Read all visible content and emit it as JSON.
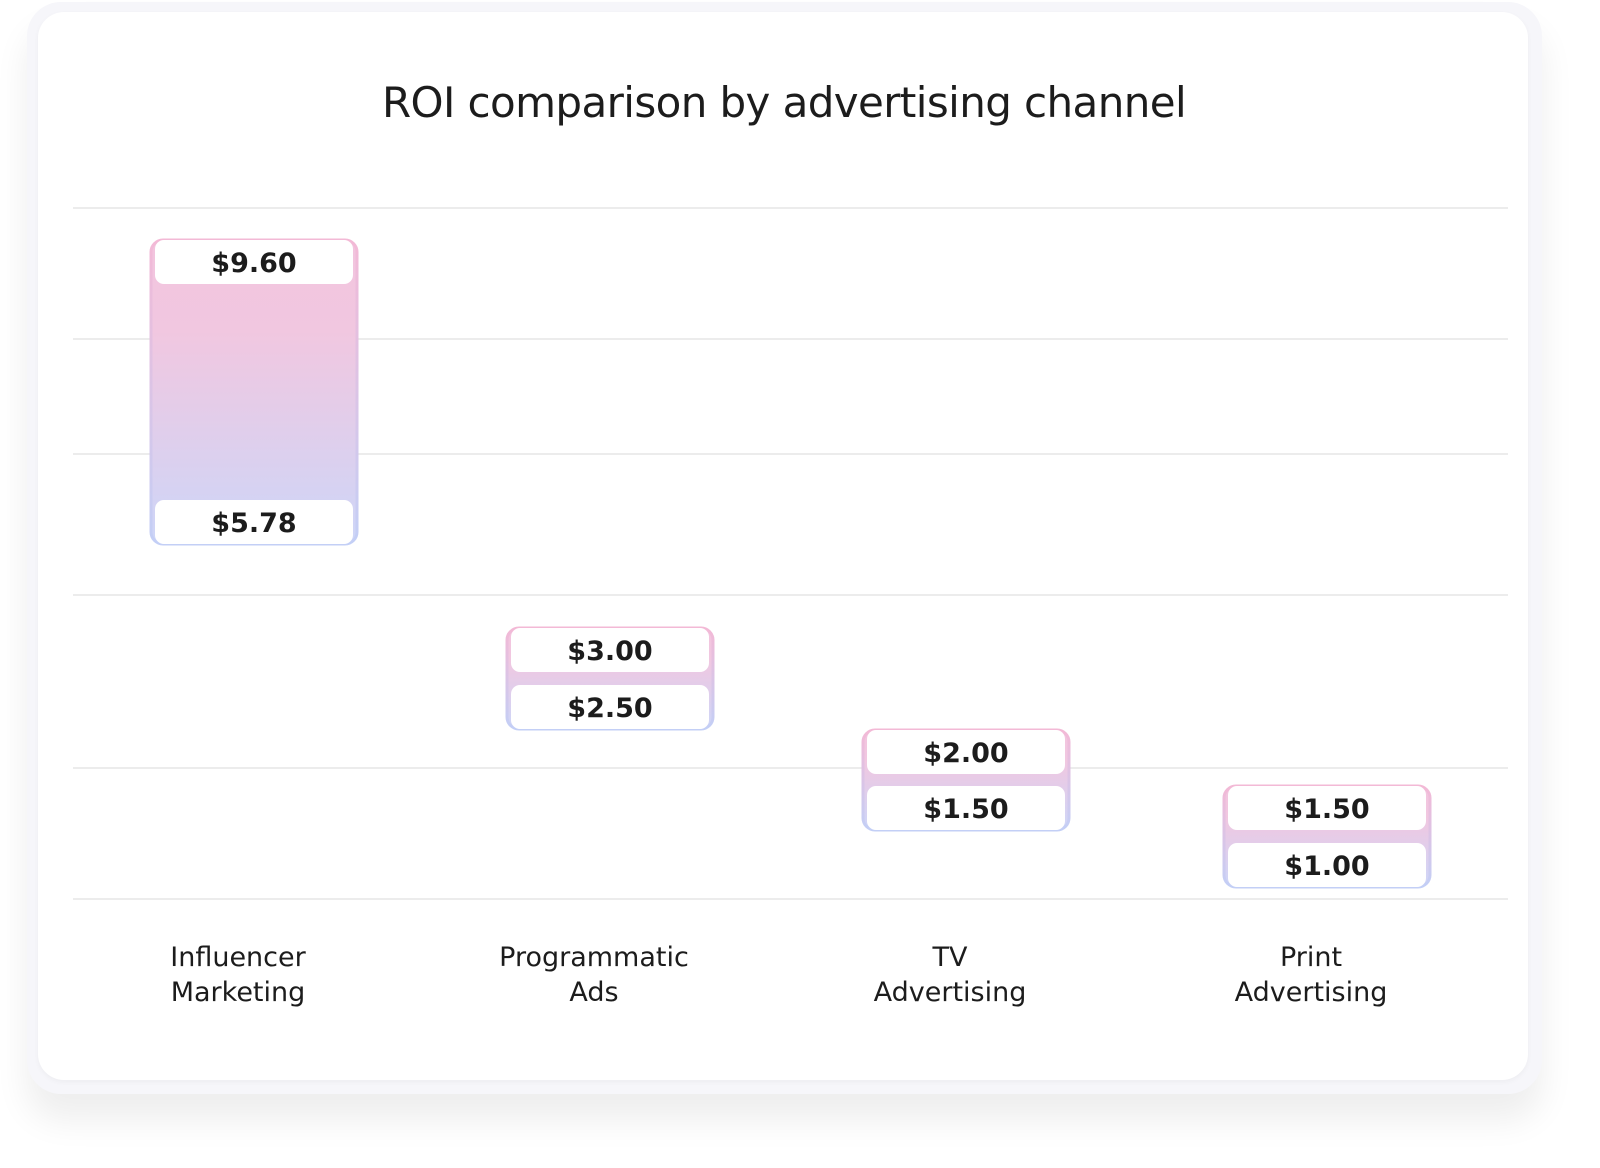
{
  "chart_data": {
    "type": "bar",
    "subtype": "floating-range",
    "title": "ROI comparison by advertising channel",
    "categories": [
      "Influencer\nMarketing",
      "Programmatic\nAds",
      "TV\nAdvertising",
      "Print\nAdvertising"
    ],
    "series": [
      {
        "values_high": [
          9.6,
          3.0,
          2.0,
          1.5
        ],
        "values_low": [
          5.78,
          2.5,
          1.5,
          1.0
        ]
      }
    ],
    "value_labels_high": [
      "$9.60",
      "$3.00",
      "$2.00",
      "$1.50"
    ],
    "value_labels_low": [
      "$5.78",
      "$2.50",
      "$1.50",
      "$1.00"
    ],
    "xlabel": "",
    "ylabel": "",
    "grid": true,
    "legend": "none",
    "colors": {
      "top": "#f2c4de",
      "bottom": "#ccd5f8",
      "grid": "#e6e6e6",
      "text": "#1c1c1c"
    }
  }
}
